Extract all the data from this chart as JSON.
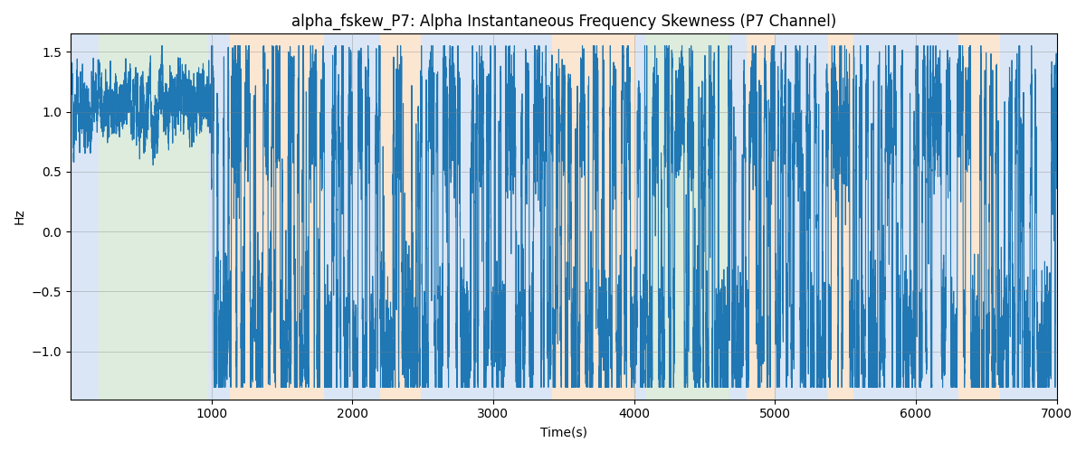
{
  "title": "alpha_fskew_P7: Alpha Instantaneous Frequency Skewness (P7 Channel)",
  "xlabel": "Time(s)",
  "ylabel": "Hz",
  "xlim": [
    0,
    7000
  ],
  "ylim": [
    -1.4,
    1.65
  ],
  "yticks": [
    -1.0,
    -0.5,
    0.0,
    0.5,
    1.0,
    1.5
  ],
  "xticks": [
    1000,
    2000,
    3000,
    4000,
    5000,
    6000,
    7000
  ],
  "line_color": "#1f77b4",
  "line_width": 0.8,
  "bg_regions": [
    {
      "xstart": 0,
      "xend": 200,
      "color": "#adc9e9",
      "alpha": 0.45
    },
    {
      "xstart": 200,
      "xend": 980,
      "color": "#b5d6b2",
      "alpha": 0.45
    },
    {
      "xstart": 980,
      "xend": 1130,
      "color": "#adc9e9",
      "alpha": 0.45
    },
    {
      "xstart": 1130,
      "xend": 1800,
      "color": "#f7c99a",
      "alpha": 0.45
    },
    {
      "xstart": 1800,
      "xend": 2200,
      "color": "#adc9e9",
      "alpha": 0.45
    },
    {
      "xstart": 2200,
      "xend": 2490,
      "color": "#f7c99a",
      "alpha": 0.45
    },
    {
      "xstart": 2490,
      "xend": 3420,
      "color": "#adc9e9",
      "alpha": 0.45
    },
    {
      "xstart": 3420,
      "xend": 4010,
      "color": "#f7c99a",
      "alpha": 0.45
    },
    {
      "xstart": 4010,
      "xend": 4080,
      "color": "#adc9e9",
      "alpha": 0.45
    },
    {
      "xstart": 4080,
      "xend": 4680,
      "color": "#b5d6b2",
      "alpha": 0.45
    },
    {
      "xstart": 4680,
      "xend": 4800,
      "color": "#adc9e9",
      "alpha": 0.45
    },
    {
      "xstart": 4800,
      "xend": 5000,
      "color": "#f7c99a",
      "alpha": 0.45
    },
    {
      "xstart": 5000,
      "xend": 5380,
      "color": "#adc9e9",
      "alpha": 0.45
    },
    {
      "xstart": 5380,
      "xend": 5560,
      "color": "#f7c99a",
      "alpha": 0.45
    },
    {
      "xstart": 5560,
      "xend": 6300,
      "color": "#adc9e9",
      "alpha": 0.45
    },
    {
      "xstart": 6300,
      "xend": 6600,
      "color": "#f7c99a",
      "alpha": 0.45
    },
    {
      "xstart": 6600,
      "xend": 7000,
      "color": "#adc9e9",
      "alpha": 0.45
    }
  ],
  "seed": 12345,
  "n_points": 14000
}
